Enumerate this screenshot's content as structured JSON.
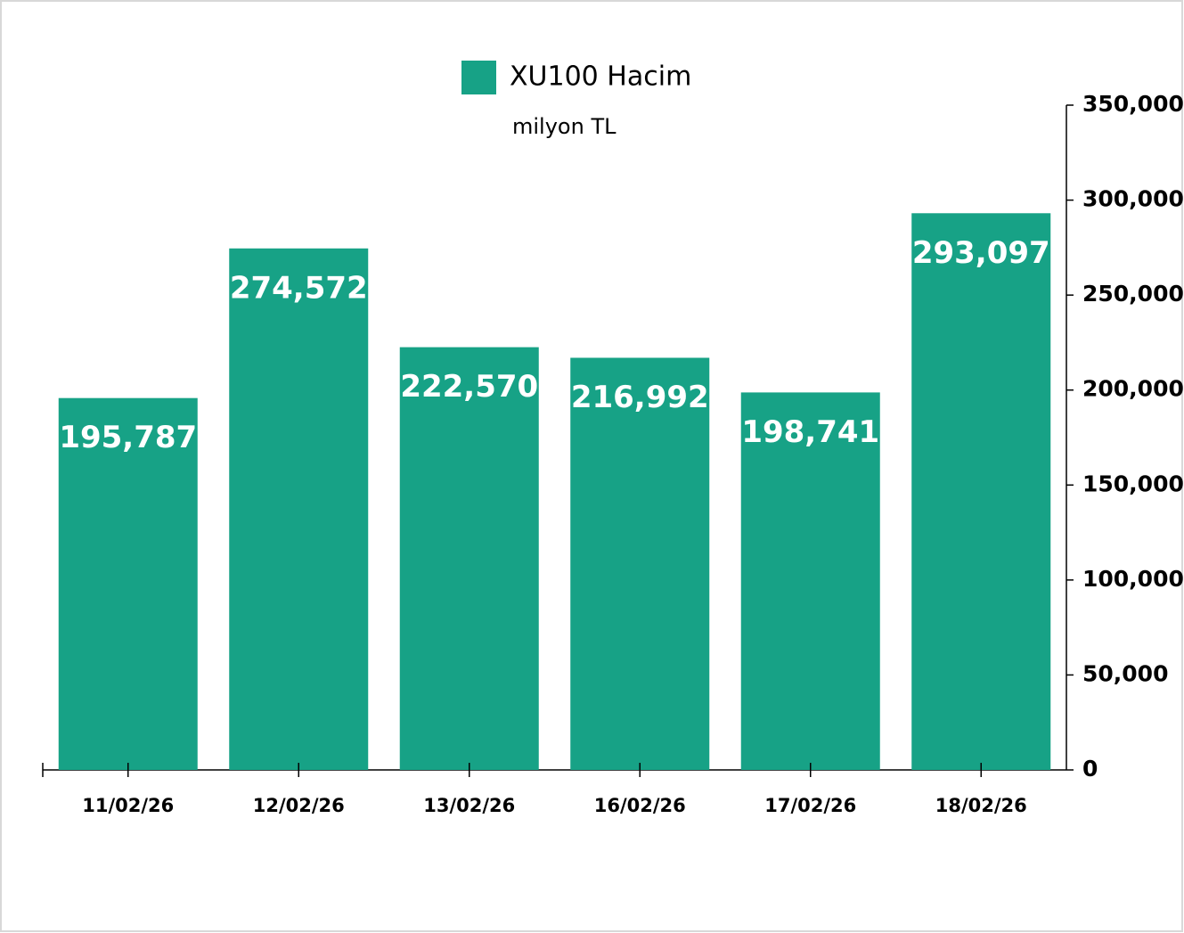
{
  "chart_data": {
    "type": "bar",
    "subtitle": "milyon TL",
    "categories": [
      "11/02/26",
      "12/02/26",
      "13/02/26",
      "16/02/26",
      "17/02/26",
      "18/02/26"
    ],
    "series": [
      {
        "name": "XU100 Hacim",
        "color": "#17a286",
        "values": [
          195787,
          274572,
          222570,
          216992,
          198741,
          293097
        ],
        "value_labels": [
          "195,787",
          "274,572",
          "222,570",
          "216,992",
          "198,741",
          "293,097"
        ]
      }
    ],
    "ylim": [
      0,
      350000
    ],
    "yticks": [
      0,
      {
        "value": 50000,
        "label": "50,000"
      },
      {
        "value": 100000,
        "label": "100,000"
      },
      {
        "value": 150000,
        "label": "150,000"
      },
      {
        "value": 200000,
        "label": "200,000"
      },
      {
        "value": 250000,
        "label": "250,000"
      },
      {
        "value": 300000,
        "label": "300,000"
      },
      {
        "value": 350000,
        "label": "350,000"
      }
    ],
    "y_axis_side": "right",
    "legend": "top"
  }
}
